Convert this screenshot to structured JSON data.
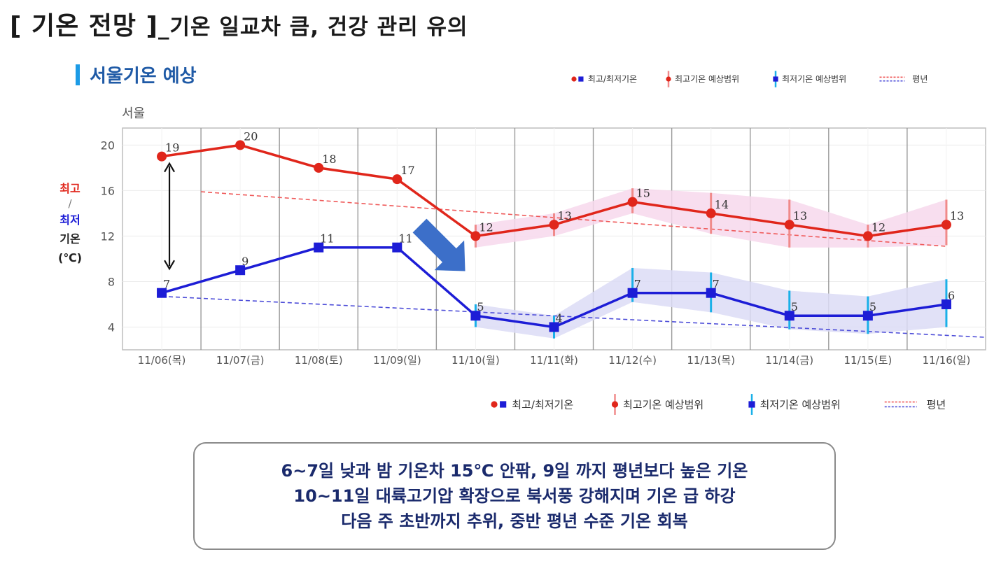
{
  "header": {
    "title_bracket": "[ 기온 전망 ]",
    "title_sub": "_기온 일교차 큼, 건강 관리 유의",
    "section": "서울기온 예상"
  },
  "legend": {
    "items": [
      "최고/최저기온",
      "최고기온 예상범위",
      "최저기온 예상범위",
      "평년"
    ]
  },
  "chart_data": {
    "type": "line",
    "location_label": "서울",
    "ylabel_parts": [
      "최고",
      "/",
      "최저",
      "기온",
      "(℃)"
    ],
    "categories": [
      "11/06(목)",
      "11/07(금)",
      "11/08(토)",
      "11/09(일)",
      "11/10(월)",
      "11/11(화)",
      "11/12(수)",
      "11/13(목)",
      "11/14(금)",
      "11/15(토)",
      "11/16(일)"
    ],
    "yticks": [
      4,
      8,
      12,
      16,
      20
    ],
    "ylim": [
      2,
      21.5
    ],
    "series": [
      {
        "name": "최고",
        "values": [
          19,
          20,
          18,
          17,
          12,
          13,
          15,
          14,
          13,
          12,
          13
        ],
        "color": "#e0261b"
      },
      {
        "name": "최저",
        "values": [
          7,
          9,
          11,
          11,
          5,
          4,
          7,
          7,
          5,
          5,
          6
        ],
        "color": "#1d1dd6"
      }
    ],
    "high_range": [
      null,
      null,
      null,
      null,
      [
        11,
        13
      ],
      [
        12,
        14
      ],
      [
        14,
        16.2
      ],
      [
        12.2,
        15.8
      ],
      [
        11,
        15.2
      ],
      [
        11,
        13
      ],
      [
        11.2,
        15.2
      ]
    ],
    "low_range": [
      null,
      null,
      null,
      null,
      [
        4,
        6
      ],
      [
        3,
        5
      ],
      [
        6.2,
        9.2
      ],
      [
        5.3,
        8.8
      ],
      [
        3.8,
        7.2
      ],
      [
        3.4,
        6.7
      ],
      [
        4,
        8.2
      ]
    ],
    "normal_high": {
      "from_index": 0.5,
      "to_index": 10,
      "from": 15.9,
      "to": 11.1
    },
    "normal_low": {
      "from_index": 0,
      "to_index": 10.5,
      "from": 6.7,
      "to": 3.1
    },
    "colors": {
      "high": "#e0261b",
      "low": "#1d1dd6",
      "high_band": "#f7d8ec",
      "low_band": "#dcdcf6",
      "high_err": "#f08a8a",
      "low_err": "#1ab0e8",
      "arrow": "#3c6fc9"
    }
  },
  "summary": {
    "lines": [
      "6~7일 낮과 밤 기온차 15℃ 안팎, 9일 까지 평년보다 높은 기온",
      "10~11일 대륙고기압 확장으로 북서풍 강해지며 기온 급 하강",
      "다음 주 초반까지 추위, 중반 평년 수준 기온 회복"
    ]
  }
}
